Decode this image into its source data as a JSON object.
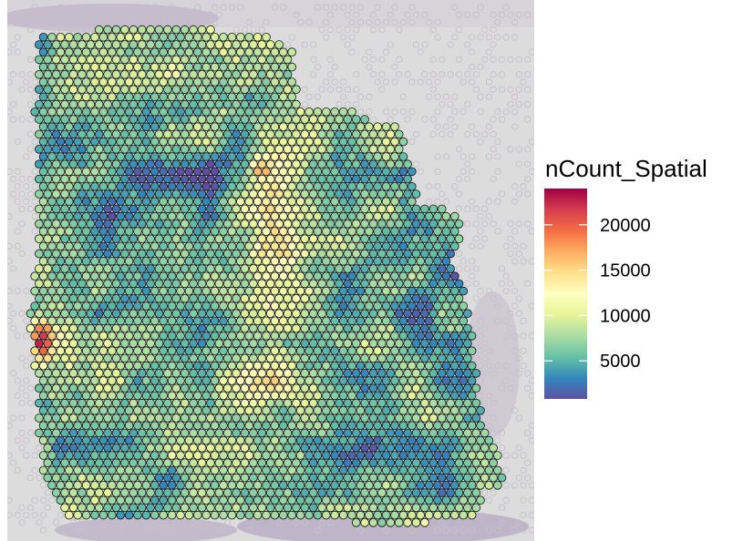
{
  "chart_data": {
    "type": "heatmap",
    "subtype": "spatial-spot-map",
    "title": "",
    "xlabel": "",
    "ylabel": "",
    "background": "tissue histology image (H&E, purple staining)",
    "legend": {
      "title": "nCount_Spatial",
      "placement": "right",
      "ticks": [
        5000,
        10000,
        15000,
        20000
      ],
      "tick_labels": [
        "5000",
        "10000",
        "15000",
        "20000"
      ],
      "range": [
        800,
        24000
      ],
      "palette_name": "Spectral (reversed)",
      "colors": [
        "#5E4FA2",
        "#3288BD",
        "#66C2A5",
        "#ABDDA4",
        "#E6F598",
        "#FFFFBF",
        "#FEE08B",
        "#FDAE61",
        "#F46D43",
        "#D53E4F",
        "#9E0142"
      ]
    },
    "regions_approx": [
      {
        "region": "upper-left center",
        "level": "low",
        "approx_value": 2500
      },
      {
        "region": "center vertical band",
        "level": "moderate-high",
        "approx_value": 10000
      },
      {
        "region": "far left edge middle",
        "level": "highest",
        "approx_value": 22000
      },
      {
        "region": "upper center hotspots",
        "level": "high",
        "approx_value": 17000
      },
      {
        "region": "lower left and lower center",
        "level": "moderate",
        "approx_value": 9000
      },
      {
        "region": "right edge",
        "level": "low-moderate",
        "approx_value": 5000
      }
    ]
  }
}
